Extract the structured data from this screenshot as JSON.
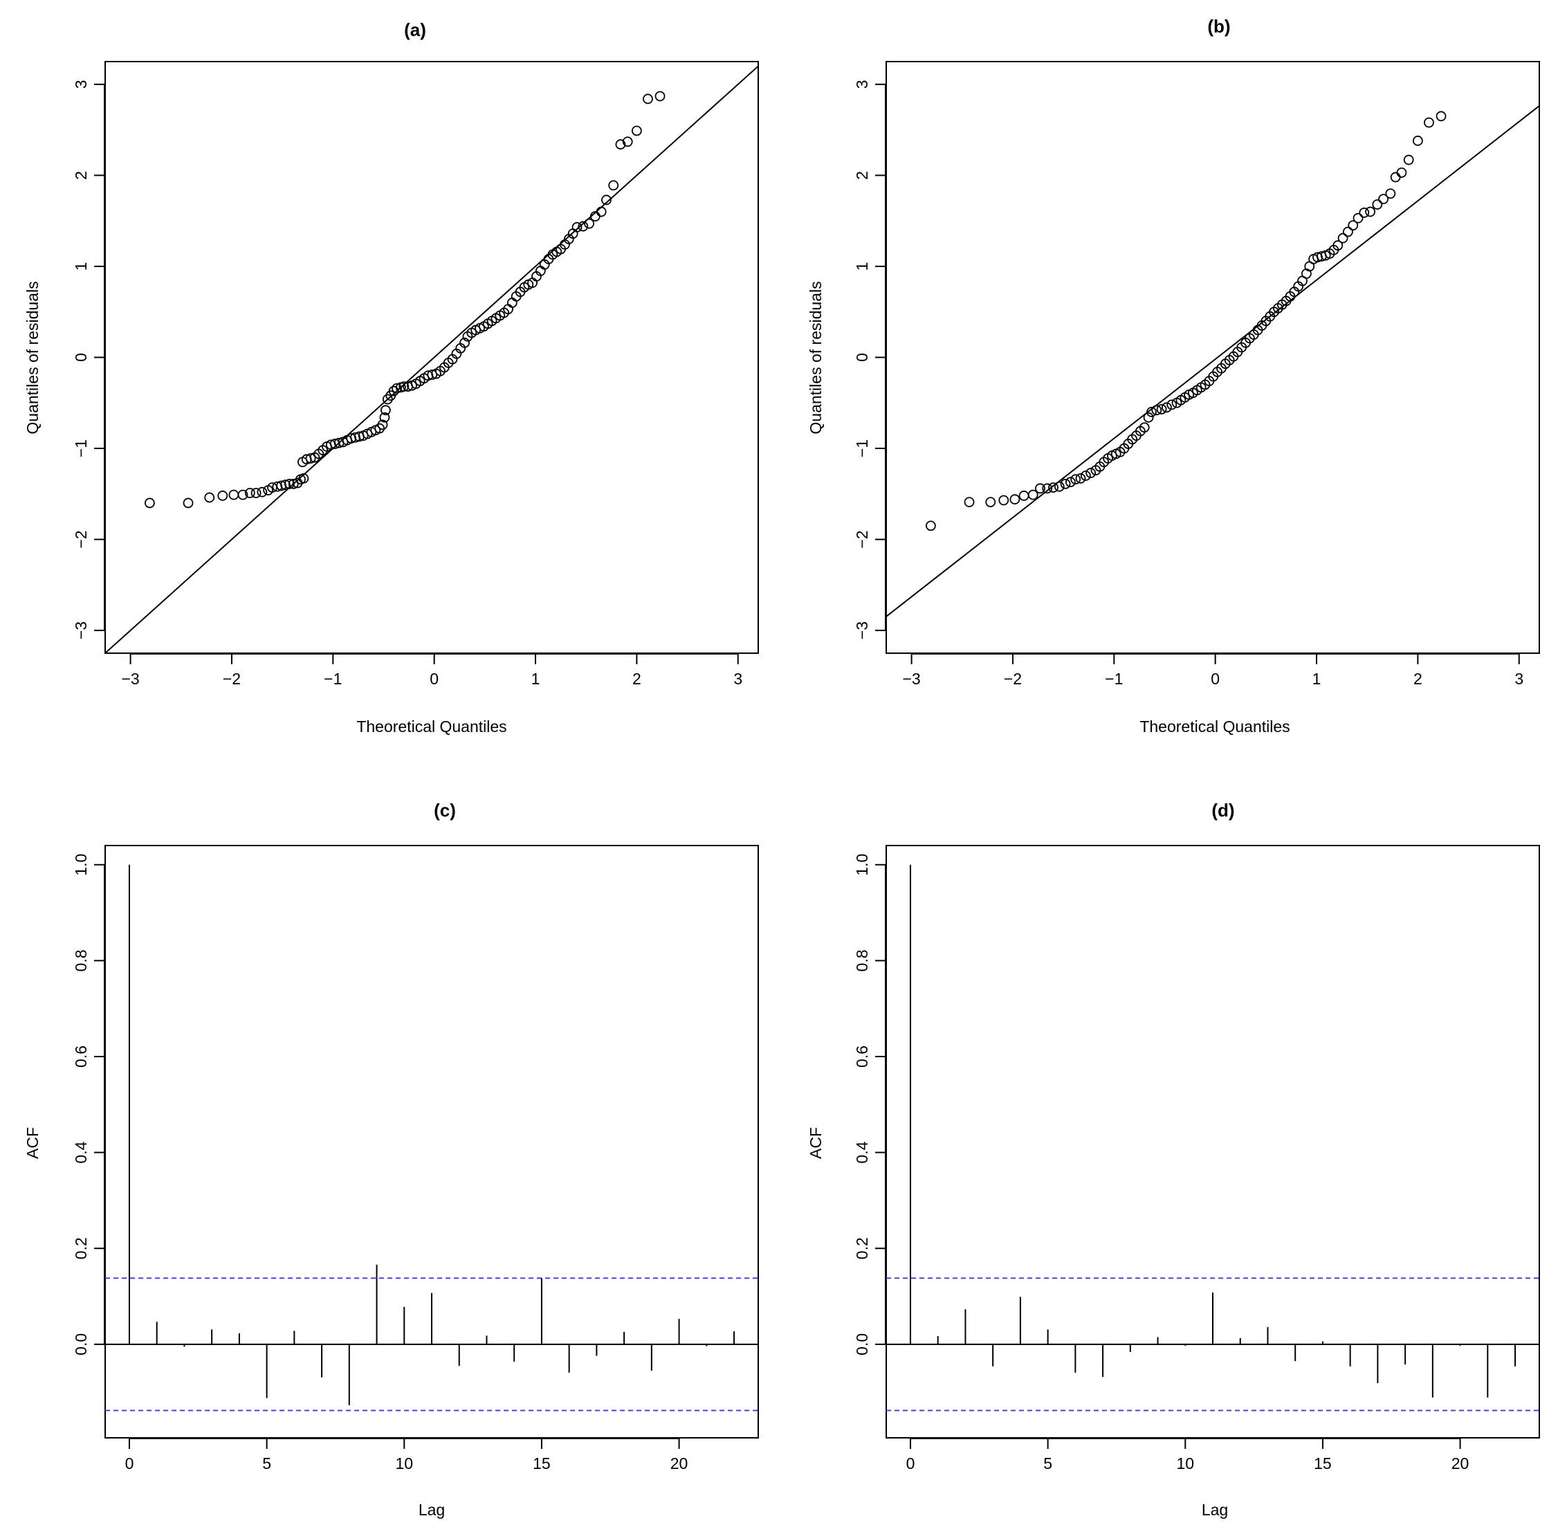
{
  "figure": {
    "panels": [
      "(a)",
      "(b)",
      "(c)",
      "(d)"
    ]
  },
  "colors": {
    "ink": "#000000",
    "confidence": "#4d3ee3"
  },
  "chart_data": [
    {
      "id": "a",
      "type": "scatter",
      "title": "(a)",
      "xlabel": "Theoretical Quantiles",
      "ylabel": "Quantiles of residuals",
      "xlim": [
        -3.25,
        3.2
      ],
      "ylim": [
        -3.25,
        3.25
      ],
      "xticks": [
        -3,
        -2,
        -1,
        0,
        1,
        2,
        3
      ],
      "yticks": [
        -3,
        -2,
        -1,
        0,
        1,
        2,
        3
      ],
      "ref_line": {
        "slope": 1.0,
        "intercept": 0.0
      },
      "points": [
        [
          -2.81,
          -1.6
        ],
        [
          -2.43,
          -1.6
        ],
        [
          -2.22,
          -1.54
        ],
        [
          -2.09,
          -1.52
        ],
        [
          -1.98,
          -1.51
        ],
        [
          -1.89,
          -1.51
        ],
        [
          -1.82,
          -1.49
        ],
        [
          -1.76,
          -1.49
        ],
        [
          -1.7,
          -1.48
        ],
        [
          -1.64,
          -1.46
        ],
        [
          -1.6,
          -1.43
        ],
        [
          -1.55,
          -1.42
        ],
        [
          -1.51,
          -1.41
        ],
        [
          -1.47,
          -1.4
        ],
        [
          -1.43,
          -1.39
        ],
        [
          -1.39,
          -1.39
        ],
        [
          -1.35,
          -1.38
        ],
        [
          -1.32,
          -1.34
        ],
        [
          -1.29,
          -1.33
        ],
        [
          -1.3,
          -1.15
        ],
        [
          -1.26,
          -1.12
        ],
        [
          -1.22,
          -1.11
        ],
        [
          -1.18,
          -1.1
        ],
        [
          -1.14,
          -1.06
        ],
        [
          -1.1,
          -1.02
        ],
        [
          -1.06,
          -0.98
        ],
        [
          -1.02,
          -0.96
        ],
        [
          -0.98,
          -0.95
        ],
        [
          -0.94,
          -0.94
        ],
        [
          -0.9,
          -0.93
        ],
        [
          -0.86,
          -0.91
        ],
        [
          -0.82,
          -0.89
        ],
        [
          -0.78,
          -0.88
        ],
        [
          -0.74,
          -0.87
        ],
        [
          -0.7,
          -0.86
        ],
        [
          -0.66,
          -0.84
        ],
        [
          -0.62,
          -0.82
        ],
        [
          -0.58,
          -0.8
        ],
        [
          -0.54,
          -0.78
        ],
        [
          -0.51,
          -0.74
        ],
        [
          -0.49,
          -0.66
        ],
        [
          -0.48,
          -0.58
        ],
        [
          -0.46,
          -0.46
        ],
        [
          -0.43,
          -0.42
        ],
        [
          -0.4,
          -0.37
        ],
        [
          -0.37,
          -0.34
        ],
        [
          -0.33,
          -0.33
        ],
        [
          -0.3,
          -0.32
        ],
        [
          -0.26,
          -0.32
        ],
        [
          -0.22,
          -0.31
        ],
        [
          -0.18,
          -0.29
        ],
        [
          -0.14,
          -0.26
        ],
        [
          -0.1,
          -0.23
        ],
        [
          -0.06,
          -0.2
        ],
        [
          -0.02,
          -0.19
        ],
        [
          0.02,
          -0.18
        ],
        [
          0.06,
          -0.15
        ],
        [
          0.1,
          -0.11
        ],
        [
          0.14,
          -0.06
        ],
        [
          0.18,
          -0.02
        ],
        [
          0.22,
          0.04
        ],
        [
          0.26,
          0.1
        ],
        [
          0.3,
          0.16
        ],
        [
          0.33,
          0.23
        ],
        [
          0.37,
          0.27
        ],
        [
          0.41,
          0.3
        ],
        [
          0.45,
          0.32
        ],
        [
          0.49,
          0.34
        ],
        [
          0.53,
          0.37
        ],
        [
          0.57,
          0.4
        ],
        [
          0.61,
          0.43
        ],
        [
          0.65,
          0.46
        ],
        [
          0.69,
          0.49
        ],
        [
          0.73,
          0.53
        ],
        [
          0.77,
          0.6
        ],
        [
          0.81,
          0.67
        ],
        [
          0.85,
          0.72
        ],
        [
          0.89,
          0.77
        ],
        [
          0.93,
          0.8
        ],
        [
          0.97,
          0.82
        ],
        [
          1.01,
          0.89
        ],
        [
          1.05,
          0.95
        ],
        [
          1.09,
          1.02
        ],
        [
          1.13,
          1.08
        ],
        [
          1.17,
          1.13
        ],
        [
          1.21,
          1.16
        ],
        [
          1.25,
          1.19
        ],
        [
          1.29,
          1.24
        ],
        [
          1.33,
          1.3
        ],
        [
          1.37,
          1.36
        ],
        [
          1.41,
          1.43
        ],
        [
          1.47,
          1.44
        ],
        [
          1.53,
          1.47
        ],
        [
          1.59,
          1.55
        ],
        [
          1.65,
          1.6
        ],
        [
          1.7,
          1.73
        ],
        [
          1.77,
          1.89
        ],
        [
          1.84,
          2.34
        ],
        [
          1.91,
          2.37
        ],
        [
          2.0,
          2.49
        ],
        [
          2.11,
          2.84
        ],
        [
          2.23,
          2.87
        ]
      ]
    },
    {
      "id": "b",
      "type": "scatter",
      "title": "(b)",
      "xlabel": "Theoretical Quantiles",
      "ylabel": "Quantiles of residuals",
      "xlim": [
        -3.25,
        3.2
      ],
      "ylim": [
        -3.25,
        3.25
      ],
      "xticks": [
        -3,
        -2,
        -1,
        0,
        1,
        2,
        3
      ],
      "yticks": [
        -3,
        -2,
        -1,
        0,
        1,
        2,
        3
      ],
      "ref_line": {
        "slope": 0.87,
        "intercept": -0.02
      },
      "points": [
        [
          -2.81,
          -1.85
        ],
        [
          -2.43,
          -1.59
        ],
        [
          -2.22,
          -1.59
        ],
        [
          -2.09,
          -1.57
        ],
        [
          -1.98,
          -1.56
        ],
        [
          -1.89,
          -1.52
        ],
        [
          -1.8,
          -1.51
        ],
        [
          -1.73,
          -1.44
        ],
        [
          -1.66,
          -1.44
        ],
        [
          -1.6,
          -1.43
        ],
        [
          -1.54,
          -1.42
        ],
        [
          -1.48,
          -1.39
        ],
        [
          -1.43,
          -1.37
        ],
        [
          -1.38,
          -1.34
        ],
        [
          -1.33,
          -1.33
        ],
        [
          -1.28,
          -1.3
        ],
        [
          -1.23,
          -1.27
        ],
        [
          -1.18,
          -1.24
        ],
        [
          -1.14,
          -1.2
        ],
        [
          -1.1,
          -1.15
        ],
        [
          -1.06,
          -1.11
        ],
        [
          -1.02,
          -1.08
        ],
        [
          -0.98,
          -1.06
        ],
        [
          -0.94,
          -1.04
        ],
        [
          -0.9,
          -1.0
        ],
        [
          -0.86,
          -0.95
        ],
        [
          -0.82,
          -0.9
        ],
        [
          -0.78,
          -0.86
        ],
        [
          -0.74,
          -0.81
        ],
        [
          -0.7,
          -0.77
        ],
        [
          -0.66,
          -0.66
        ],
        [
          -0.63,
          -0.6
        ],
        [
          -0.58,
          -0.58
        ],
        [
          -0.53,
          -0.57
        ],
        [
          -0.48,
          -0.55
        ],
        [
          -0.43,
          -0.52
        ],
        [
          -0.38,
          -0.5
        ],
        [
          -0.34,
          -0.47
        ],
        [
          -0.3,
          -0.44
        ],
        [
          -0.26,
          -0.41
        ],
        [
          -0.22,
          -0.39
        ],
        [
          -0.18,
          -0.36
        ],
        [
          -0.14,
          -0.33
        ],
        [
          -0.1,
          -0.3
        ],
        [
          -0.06,
          -0.26
        ],
        [
          -0.02,
          -0.21
        ],
        [
          0.02,
          -0.16
        ],
        [
          0.06,
          -0.12
        ],
        [
          0.1,
          -0.07
        ],
        [
          0.14,
          -0.03
        ],
        [
          0.18,
          0.01
        ],
        [
          0.22,
          0.06
        ],
        [
          0.26,
          0.11
        ],
        [
          0.3,
          0.16
        ],
        [
          0.34,
          0.21
        ],
        [
          0.38,
          0.25
        ],
        [
          0.42,
          0.3
        ],
        [
          0.46,
          0.35
        ],
        [
          0.5,
          0.4
        ],
        [
          0.54,
          0.45
        ],
        [
          0.58,
          0.5
        ],
        [
          0.62,
          0.54
        ],
        [
          0.66,
          0.58
        ],
        [
          0.7,
          0.62
        ],
        [
          0.74,
          0.67
        ],
        [
          0.78,
          0.72
        ],
        [
          0.82,
          0.78
        ],
        [
          0.86,
          0.84
        ],
        [
          0.9,
          0.92
        ],
        [
          0.93,
          1.0
        ],
        [
          0.97,
          1.08
        ],
        [
          1.01,
          1.1
        ],
        [
          1.05,
          1.11
        ],
        [
          1.09,
          1.12
        ],
        [
          1.13,
          1.14
        ],
        [
          1.17,
          1.18
        ],
        [
          1.21,
          1.23
        ],
        [
          1.26,
          1.31
        ],
        [
          1.31,
          1.38
        ],
        [
          1.36,
          1.45
        ],
        [
          1.41,
          1.53
        ],
        [
          1.47,
          1.59
        ],
        [
          1.53,
          1.6
        ],
        [
          1.6,
          1.68
        ],
        [
          1.66,
          1.74
        ],
        [
          1.73,
          1.8
        ],
        [
          1.78,
          1.98
        ],
        [
          1.84,
          2.03
        ],
        [
          1.91,
          2.17
        ],
        [
          2.0,
          2.38
        ],
        [
          2.11,
          2.58
        ],
        [
          2.23,
          2.65
        ]
      ]
    },
    {
      "id": "c",
      "type": "bar",
      "title": "(c)",
      "xlabel": "Lag",
      "ylabel": "ACF",
      "xlim": [
        -0.88,
        22.88
      ],
      "ylim": [
        -0.195,
        1.04
      ],
      "xticks": [
        0,
        5,
        10,
        15,
        20
      ],
      "yticks": [
        "0.0",
        "0.2",
        "0.4",
        "0.6",
        "0.8",
        "1.0"
      ],
      "confidence_bounds": [
        0.138,
        -0.138
      ],
      "lags": [
        0,
        1,
        2,
        3,
        4,
        5,
        6,
        7,
        8,
        9,
        10,
        11,
        12,
        13,
        14,
        15,
        16,
        17,
        18,
        19,
        20,
        21,
        22
      ],
      "acf": [
        1.0,
        0.047,
        -0.005,
        0.031,
        0.023,
        -0.112,
        0.028,
        -0.069,
        -0.127,
        0.166,
        0.078,
        0.107,
        -0.045,
        0.018,
        -0.036,
        0.138,
        -0.059,
        -0.024,
        0.026,
        -0.055,
        0.053,
        -0.004,
        0.027
      ]
    },
    {
      "id": "d",
      "type": "bar",
      "title": "(d)",
      "xlabel": "Lag",
      "ylabel": "ACF",
      "xlim": [
        -0.88,
        22.88
      ],
      "ylim": [
        -0.195,
        1.04
      ],
      "xticks": [
        0,
        5,
        10,
        15,
        20
      ],
      "yticks": [
        "0.0",
        "0.2",
        "0.4",
        "0.6",
        "0.8",
        "1.0"
      ],
      "confidence_bounds": [
        0.138,
        -0.138
      ],
      "lags": [
        0,
        1,
        2,
        3,
        4,
        5,
        6,
        7,
        8,
        9,
        10,
        11,
        12,
        13,
        14,
        15,
        16,
        17,
        18,
        19,
        20,
        21,
        22
      ],
      "acf": [
        1.0,
        0.017,
        0.073,
        -0.046,
        0.099,
        0.031,
        -0.059,
        -0.068,
        -0.016,
        0.015,
        -0.003,
        0.108,
        0.013,
        0.036,
        -0.035,
        0.006,
        -0.046,
        -0.081,
        -0.042,
        -0.111,
        -0.003,
        -0.111,
        -0.046
      ]
    }
  ]
}
